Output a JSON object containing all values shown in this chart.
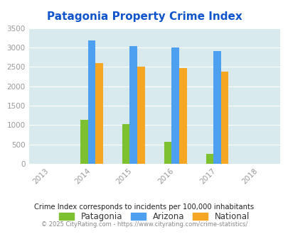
{
  "title": "Patagonia Property Crime Index",
  "years": [
    2013,
    2014,
    2015,
    2016,
    2017,
    2018
  ],
  "bar_years": [
    2014,
    2015,
    2016,
    2017
  ],
  "patagonia": [
    1130,
    1020,
    570,
    255
  ],
  "arizona": [
    3190,
    3040,
    2990,
    2910
  ],
  "national": [
    2600,
    2500,
    2470,
    2380
  ],
  "color_patagonia": "#7dc030",
  "color_arizona": "#4d9fef",
  "color_national": "#f5a623",
  "ylim": [
    0,
    3500
  ],
  "yticks": [
    0,
    500,
    1000,
    1500,
    2000,
    2500,
    3000,
    3500
  ],
  "background_color": "#d8eaee",
  "title_color": "#1155cc",
  "title_fontsize": 11,
  "legend_labels": [
    "Patagonia",
    "Arizona",
    "National"
  ],
  "footnote1": "Crime Index corresponds to incidents per 100,000 inhabitants",
  "footnote2": "© 2025 CityRating.com - https://www.cityrating.com/crime-statistics/",
  "footnote1_color": "#222222",
  "footnote2_color": "#888888",
  "bar_width": 0.18,
  "xlim": [
    2012.5,
    2018.5
  ]
}
